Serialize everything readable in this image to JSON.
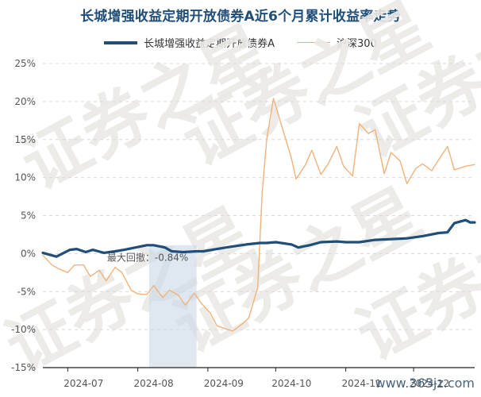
{
  "chart_data": {
    "type": "line",
    "title": "长城增强收益定期开放债券A近6个月累计收益率走势",
    "x_tick_labels": [
      "2024-07",
      "2024-08",
      "2024-09",
      "2024-10",
      "2024-11",
      "2024-12"
    ],
    "y_tick_labels": [
      "25%",
      "20%",
      "15%",
      "10%",
      "5%",
      "0%",
      "-5%",
      "-10%",
      "-15%"
    ],
    "ylim": [
      -15,
      25
    ],
    "grid": true,
    "legend_position": "top-center",
    "annotation": "最大回撤：-0.84%",
    "drawdown_range": [
      "2024-08-06",
      "2024-08-27"
    ],
    "series": [
      {
        "name": "长城增强收益定期开放债券A",
        "color": "#1f4e79",
        "x": [
          "2024-06-20",
          "2024-06-26",
          "2024-07-02",
          "2024-07-05",
          "2024-07-09",
          "2024-07-12",
          "2024-07-17",
          "2024-07-22",
          "2024-07-26",
          "2024-07-31",
          "2024-08-05",
          "2024-08-08",
          "2024-08-13",
          "2024-08-16",
          "2024-08-21",
          "2024-08-27",
          "2024-08-30",
          "2024-09-05",
          "2024-09-11",
          "2024-09-18",
          "2024-09-24",
          "2024-09-27",
          "2024-10-01",
          "2024-10-08",
          "2024-10-11",
          "2024-10-16",
          "2024-10-21",
          "2024-10-28",
          "2024-11-01",
          "2024-11-07",
          "2024-11-14",
          "2024-11-21",
          "2024-11-28",
          "2024-12-05",
          "2024-12-12",
          "2024-12-16",
          "2024-12-19",
          "2024-12-24",
          "2024-12-26",
          "2024-12-28"
        ],
        "values": [
          0.1,
          -0.4,
          0.5,
          0.6,
          0.2,
          0.5,
          0.1,
          0.3,
          0.5,
          0.8,
          1.1,
          1.1,
          0.8,
          0.3,
          0.2,
          0.3,
          0.3,
          0.6,
          0.9,
          1.2,
          1.4,
          1.4,
          1.5,
          1.2,
          0.8,
          1.1,
          1.5,
          1.6,
          1.5,
          1.5,
          1.8,
          1.9,
          2.0,
          2.3,
          2.7,
          2.8,
          4.0,
          4.4,
          4.1,
          4.1
        ]
      },
      {
        "name": "沪深300",
        "color": "#f2b27a",
        "x": [
          "2024-06-20",
          "2024-06-24",
          "2024-06-27",
          "2024-07-01",
          "2024-07-04",
          "2024-07-08",
          "2024-07-11",
          "2024-07-15",
          "2024-07-18",
          "2024-07-22",
          "2024-07-25",
          "2024-07-29",
          "2024-08-01",
          "2024-08-05",
          "2024-08-08",
          "2024-08-12",
          "2024-08-15",
          "2024-08-19",
          "2024-08-22",
          "2024-08-26",
          "2024-08-29",
          "2024-09-02",
          "2024-09-05",
          "2024-09-09",
          "2024-09-12",
          "2024-09-16",
          "2024-09-19",
          "2024-09-23",
          "2024-09-25",
          "2024-09-27",
          "2024-09-30",
          "2024-10-08",
          "2024-10-10",
          "2024-10-14",
          "2024-10-17",
          "2024-10-21",
          "2024-10-24",
          "2024-10-28",
          "2024-10-31",
          "2024-11-04",
          "2024-11-07",
          "2024-11-11",
          "2024-11-14",
          "2024-11-18",
          "2024-11-21",
          "2024-11-25",
          "2024-11-28",
          "2024-12-02",
          "2024-12-05",
          "2024-12-09",
          "2024-12-12",
          "2024-12-16",
          "2024-12-19",
          "2024-12-24",
          "2024-12-28"
        ],
        "values": [
          -0.2,
          -1.5,
          -2.0,
          -2.5,
          -1.5,
          -1.5,
          -3.0,
          -2.2,
          -3.6,
          -1.8,
          -2.5,
          -4.8,
          -5.3,
          -5.4,
          -4.2,
          -5.8,
          -4.8,
          -5.5,
          -6.8,
          -5.2,
          -6.5,
          -7.8,
          -9.5,
          -9.9,
          -10.2,
          -9.3,
          -8.5,
          -4.5,
          8.0,
          15.0,
          20.4,
          12.5,
          9.8,
          11.6,
          13.6,
          10.4,
          11.7,
          14.1,
          11.5,
          10.2,
          17.1,
          15.8,
          16.3,
          10.5,
          13.3,
          12.2,
          9.2,
          11.2,
          11.8,
          10.9,
          12.3,
          14.1,
          11.0,
          11.5,
          11.7
        ]
      }
    ]
  },
  "watermark_text": "证券之星",
  "site_mark": "www.365jz.com"
}
